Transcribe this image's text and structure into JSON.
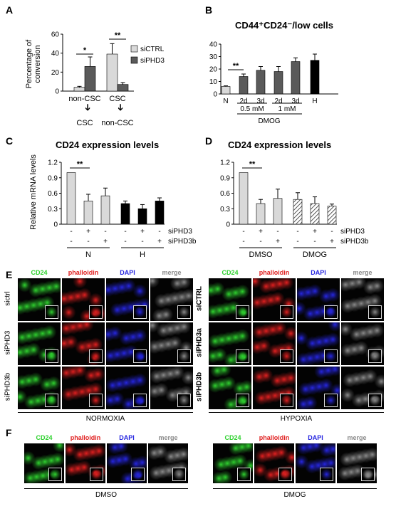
{
  "panels": {
    "A": "A",
    "B": "B",
    "C": "C",
    "D": "D",
    "E": "E",
    "F": "F"
  },
  "colors": {
    "light": "#d9d9d9",
    "dark": "#5a5a5a",
    "black": "#000000",
    "hatch": "#555555",
    "cd24": "#2fd12f",
    "phalloidin": "#e02020",
    "dapi": "#2626e0",
    "merge": "#8a8a8a"
  },
  "chart_data": [
    {
      "type": "bar",
      "panel": "A",
      "ylabel": "Percentage of conversion",
      "ylim": [
        0,
        60
      ],
      "yticks": [
        0,
        20,
        40,
        60
      ],
      "groups": [
        {
          "label_top": "non-CSC",
          "label_bottom": "CSC"
        },
        {
          "label_top": "CSC",
          "label_bottom": "non-CSC"
        }
      ],
      "series": [
        {
          "name": "siCTRL",
          "color": "light",
          "values": [
            4,
            39
          ],
          "errors": [
            1,
            11
          ]
        },
        {
          "name": "siPHD3",
          "color": "dark",
          "values": [
            26,
            7
          ],
          "errors": [
            10,
            2
          ]
        }
      ],
      "significance": [
        "*",
        "**"
      ],
      "arrow": "➔"
    },
    {
      "type": "bar",
      "panel": "B",
      "title": "CD44⁺CD24⁻/low cells",
      "ylabel": "Percentage",
      "ylim": [
        0,
        40
      ],
      "yticks": [
        0,
        10,
        20,
        30,
        40
      ],
      "categories": [
        "N",
        "2d",
        "3d",
        "2d",
        "3d",
        "H"
      ],
      "values": [
        6,
        14,
        19,
        18,
        26,
        27
      ],
      "errors": [
        0.5,
        2,
        3,
        4,
        3,
        5
      ],
      "bar_colors": [
        "light",
        "dark",
        "dark",
        "dark",
        "dark",
        "black"
      ],
      "subgroups": [
        "0.5 mM",
        "1 mM"
      ],
      "group_label": "DMOG",
      "significance": "**"
    },
    {
      "type": "bar",
      "panel": "C",
      "title": "CD24 expression levels",
      "ylabel": "Relative mRNA levels",
      "ylim": [
        0,
        1.2
      ],
      "yticks": [
        "0",
        "0.3",
        "0.6",
        "0.9",
        "1.2"
      ],
      "values": [
        1.0,
        0.45,
        0.55,
        0.4,
        0.3,
        0.45
      ],
      "errors": [
        0,
        0.13,
        0.15,
        0.05,
        0.08,
        0.06
      ],
      "bar_colors": [
        "light",
        "light",
        "light",
        "black",
        "black",
        "black"
      ],
      "siPHD3": [
        "-",
        "+",
        "-",
        "-",
        "+",
        "-"
      ],
      "siPHD3b": [
        "-",
        "-",
        "+",
        "-",
        "-",
        "+"
      ],
      "row_labels": [
        "siPHD3",
        "siPHD3b"
      ],
      "groups": [
        "N",
        "H"
      ],
      "significance": "**"
    },
    {
      "type": "bar",
      "panel": "D",
      "title": "CD24 expression levels",
      "ylim": [
        0,
        1.2
      ],
      "yticks": [
        "0",
        "0.3",
        "0.6",
        "0.9",
        "1.2"
      ],
      "values": [
        1.0,
        0.4,
        0.5,
        0.48,
        0.4,
        0.35
      ],
      "errors": [
        0,
        0.08,
        0.18,
        0.13,
        0.13,
        0.04
      ],
      "bar_colors": [
        "light",
        "light",
        "light",
        "hatch",
        "hatch",
        "hatch"
      ],
      "siPHD3": [
        "-",
        "+",
        "-",
        "-",
        "+",
        "-"
      ],
      "siPHD3b": [
        "-",
        "-",
        "+",
        "-",
        "-",
        "+"
      ],
      "row_labels": [
        "siPHD3",
        "siPHD3b"
      ],
      "groups": [
        "DMSO",
        "DMOG"
      ],
      "significance": "**"
    }
  ],
  "micrographs": {
    "channels": [
      "CD24",
      "phalloidin",
      "DAPI",
      "merge"
    ],
    "E_left_rows": [
      "sictrl",
      "siPHD3",
      "siPHD3b"
    ],
    "E_right_rows": [
      "siCTRL",
      "siPHD3a",
      "siPHD3b"
    ],
    "E_left_condition": "NORMOXIA",
    "E_right_condition": "HYPOXIA",
    "F_left_condition": "DMSO",
    "F_right_condition": "DMOG"
  }
}
